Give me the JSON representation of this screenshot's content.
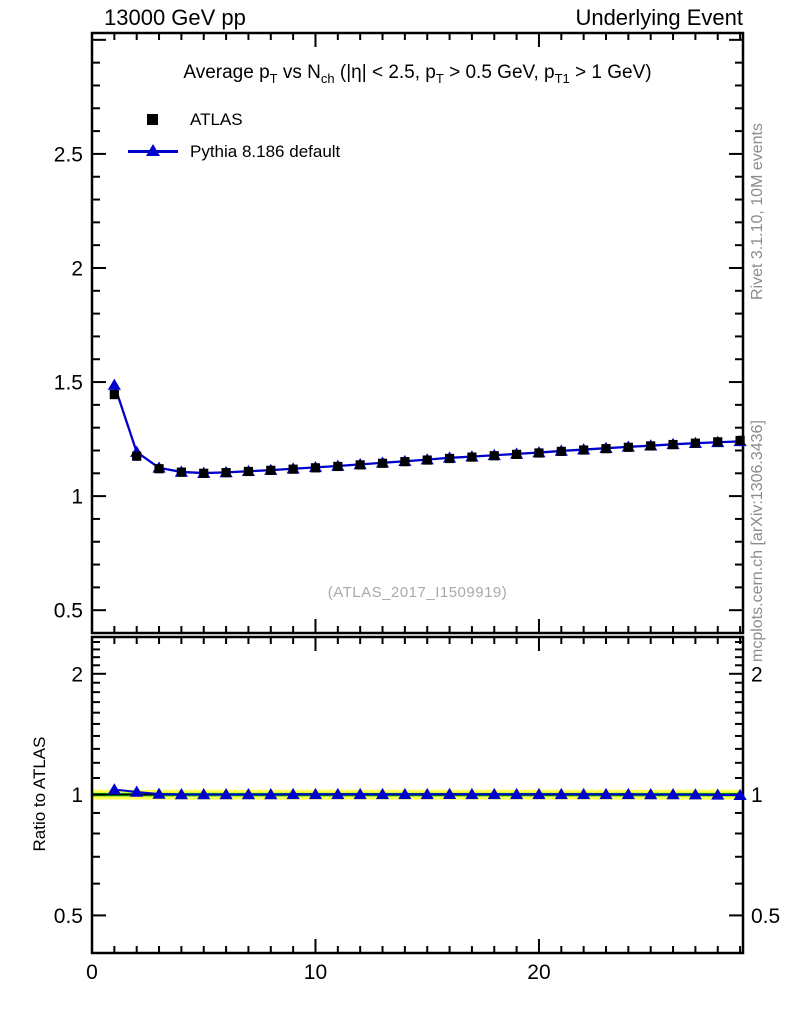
{
  "header": {
    "left": "13000 GeV pp",
    "right": "Underlying Event"
  },
  "title": {
    "parts": [
      {
        "t": "Average p"
      },
      {
        "t": "T"
      },
      {
        "t": " vs N"
      },
      {
        "t": "ch"
      },
      {
        "t": " (|η| < 2.5, p"
      },
      {
        "t": "T"
      },
      {
        "t": " > 0.5 GeV, p"
      },
      {
        "t": "T1"
      },
      {
        "t": " > 1 GeV)"
      }
    ]
  },
  "legend": {
    "entries": [
      {
        "label": "ATLAS"
      },
      {
        "label": "Pythia 8.186 default"
      }
    ]
  },
  "watermark": "(ATLAS_2017_I1509919)",
  "side_notes": {
    "rivet": "Rivet 3.1.10,  10M events",
    "mcplots": "mcplots.cern.ch [arXiv:1306.3436]"
  },
  "ratio_ylabel": "Ratio to ATLAS",
  "colors": {
    "data": "#000000",
    "mc": "#0000cc",
    "band_outer": "#ffff55",
    "band_inner": "#00bb00",
    "frame": "#000000",
    "gray_text": "#8c8c8c"
  },
  "chart_data": {
    "type": "line",
    "title": "Average pT vs Nch (|eta| < 2.5, pT > 0.5 GeV, pT1 > 1 GeV)",
    "xlabel": "",
    "ylabel": "",
    "xlim": [
      0,
      29.13
    ],
    "x": [
      1,
      2,
      3,
      4,
      5,
      6,
      7,
      8,
      9,
      10,
      11,
      12,
      13,
      14,
      15,
      16,
      17,
      18,
      19,
      20,
      21,
      22,
      23,
      24,
      25,
      26,
      27,
      28,
      29
    ],
    "xticks": [
      {
        "v": 0,
        "label": "0"
      },
      {
        "v": 10,
        "label": "10"
      },
      {
        "v": 20,
        "label": "20"
      }
    ],
    "x_minor_step": 1,
    "main_panel": {
      "ylim": [
        0.4,
        3.03
      ],
      "yticks": [
        {
          "v": 0.5,
          "label": "0.5"
        },
        {
          "v": 1,
          "label": "1"
        },
        {
          "v": 1.5,
          "label": "1.5"
        },
        {
          "v": 2,
          "label": "2"
        },
        {
          "v": 2.5,
          "label": "2.5"
        }
      ],
      "y_minor_step": 0.1,
      "grid": false
    },
    "ratio_panel": {
      "scale": "log",
      "ylim": [
        0.403,
        2.47
      ],
      "yticks": [
        {
          "v": 0.5,
          "label": "0.5"
        },
        {
          "v": 1,
          "label": "1"
        },
        {
          "v": 2,
          "label": "2"
        }
      ],
      "band_outer_halfwidth": 0.028,
      "band_inner_halfwidth": 0.01,
      "reference": "ATLAS"
    },
    "series": [
      {
        "name": "ATLAS",
        "marker": "square",
        "color": "#000000",
        "line": false,
        "values": [
          1.445,
          1.175,
          1.12,
          1.105,
          1.1,
          1.103,
          1.108,
          1.113,
          1.118,
          1.124,
          1.13,
          1.137,
          1.144,
          1.151,
          1.158,
          1.165,
          1.171,
          1.177,
          1.183,
          1.189,
          1.196,
          1.202,
          1.208,
          1.214,
          1.22,
          1.226,
          1.232,
          1.238,
          1.244
        ]
      },
      {
        "name": "Pythia 8.186 default",
        "marker": "triangle",
        "color": "#0000cc",
        "line": true,
        "values": [
          1.487,
          1.193,
          1.124,
          1.106,
          1.101,
          1.104,
          1.109,
          1.114,
          1.12,
          1.126,
          1.132,
          1.139,
          1.146,
          1.153,
          1.16,
          1.168,
          1.173,
          1.179,
          1.185,
          1.191,
          1.198,
          1.204,
          1.21,
          1.216,
          1.221,
          1.227,
          1.232,
          1.236,
          1.24
        ]
      }
    ],
    "legend_position": "top-left-inside"
  }
}
